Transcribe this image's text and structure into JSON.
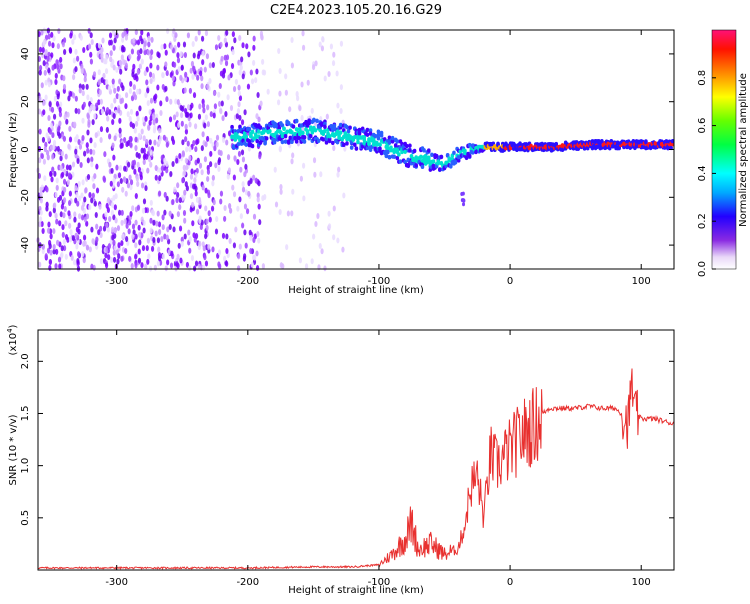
{
  "title": "C2E4.2023.105.20.16.G29",
  "colors": {
    "snr_line": "#e8302f",
    "frame": "#000000"
  },
  "chart_data": [
    {
      "type": "heatmap",
      "xlabel": "Height of straight line (km)",
      "ylabel": "Frequency (Hz)",
      "xlim": [
        -360,
        125
      ],
      "ylim": [
        -50,
        50
      ],
      "x_ticks": [
        -300,
        -200,
        -100,
        0,
        100
      ],
      "y_ticks": [
        -40,
        -20,
        0,
        20,
        40
      ],
      "colorbar": {
        "label": "Normalized spectral amplitude",
        "range": [
          0.0,
          1.0
        ],
        "ticks": [
          "0.0",
          "0.2",
          "0.4",
          "0.6",
          "0.8"
        ],
        "colormap": "rainbow"
      },
      "ridge": {
        "x": [
          -210,
          -180,
          -150,
          -120,
          -100,
          -80,
          -60,
          -50,
          -40,
          -30,
          -20,
          -10,
          0,
          30,
          60,
          90,
          120
        ],
        "y": [
          5,
          7,
          8,
          5,
          3,
          -2,
          -5,
          -6,
          -2,
          0,
          1,
          1,
          1,
          1,
          2,
          2,
          2
        ]
      },
      "grid": false
    },
    {
      "type": "line",
      "xlabel": "Height of straight line (km)",
      "ylabel": "SNR (10 * v/v)",
      "y_multiplier": "(x10^4)",
      "xlim": [
        -360,
        125
      ],
      "ylim": [
        0,
        2.3
      ],
      "x_ticks": [
        -300,
        -200,
        -100,
        0,
        100
      ],
      "y_ticks": [
        "0.5",
        "1.0",
        "1.5",
        "2.0"
      ],
      "series": [
        {
          "x": [
            -360,
            -300,
            -200,
            -150,
            -120,
            -100,
            -90,
            -80,
            -75,
            -70,
            -60,
            -50,
            -40,
            -35,
            -30,
            -25,
            -20,
            -15,
            -10,
            0,
            10,
            20,
            25,
            30,
            40,
            50,
            60,
            70,
            80,
            85,
            90,
            93,
            95,
            100,
            110,
            125
          ],
          "values": [
            0.02,
            0.02,
            0.02,
            0.03,
            0.03,
            0.05,
            0.15,
            0.3,
            0.45,
            0.2,
            0.25,
            0.15,
            0.2,
            0.4,
            0.8,
            0.9,
            0.5,
            1.1,
            1.0,
            1.15,
            1.3,
            1.4,
            1.5,
            1.55,
            1.55,
            1.55,
            1.57,
            1.55,
            1.55,
            1.5,
            1.4,
            1.8,
            1.5,
            1.45,
            1.45,
            1.4
          ]
        }
      ],
      "grid": false
    }
  ]
}
